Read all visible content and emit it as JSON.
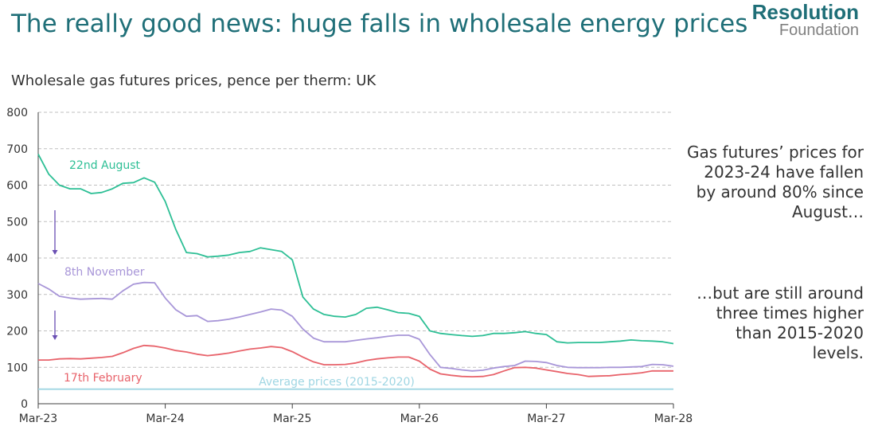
{
  "header": {
    "title": "The really good news: huge falls in wholesale energy prices",
    "logo_top": "Resolution",
    "logo_bottom": "Foundation"
  },
  "annotations": {
    "note_1": "Gas futures’ prices for 2023-24 have fallen by around 80% since August…",
    "note_2": "…but are still around three times higher than 2015-2020 levels."
  },
  "colors": {
    "aug": "#2dbf95",
    "nov": "#a896d8",
    "feb": "#e8636b",
    "avg": "#9fd6e3",
    "arrow": "#6a4fb3",
    "grid": "#bfbfbf",
    "axis": "#404040"
  },
  "chart_data": {
    "type": "line",
    "title": "Wholesale gas futures prices, pence per therm: UK",
    "xlabel": "",
    "ylabel": "",
    "ylim": [
      0,
      800
    ],
    "yticks": [
      0,
      100,
      200,
      300,
      400,
      500,
      600,
      700,
      800
    ],
    "xlim": [
      0,
      60
    ],
    "xticks": [
      {
        "value": 0,
        "label": "Mar-23"
      },
      {
        "value": 12,
        "label": "Mar-24"
      },
      {
        "value": 24,
        "label": "Mar-25"
      },
      {
        "value": 36,
        "label": "Mar-26"
      },
      {
        "value": 48,
        "label": "Mar-27"
      },
      {
        "value": 60,
        "label": "Mar-28"
      }
    ],
    "grid": "horizontal dashed",
    "series": [
      {
        "name": "22nd August",
        "color_key": "aug",
        "x": [
          0,
          1,
          2,
          3,
          4,
          5,
          6,
          7,
          8,
          9,
          10,
          11,
          12,
          13,
          14,
          15,
          16,
          17,
          18,
          19,
          20,
          21,
          22,
          23,
          24,
          25,
          26,
          27,
          28,
          29,
          30,
          31,
          32,
          33,
          34,
          35,
          36,
          37,
          38,
          39,
          40,
          41,
          42,
          43,
          44,
          45,
          46,
          47,
          48,
          49,
          50,
          51,
          52,
          53,
          54,
          55,
          56,
          57,
          58,
          59,
          60
        ],
        "values": [
          685,
          630,
          600,
          590,
          590,
          577,
          580,
          590,
          605,
          607,
          620,
          608,
          555,
          478,
          415,
          412,
          403,
          405,
          408,
          415,
          418,
          428,
          423,
          418,
          395,
          293,
          260,
          245,
          240,
          238,
          245,
          262,
          265,
          258,
          250,
          248,
          240,
          200,
          193,
          190,
          187,
          185,
          187,
          193,
          193,
          195,
          198,
          193,
          190,
          170,
          167,
          168,
          168,
          168,
          170,
          172,
          175,
          173,
          172,
          170,
          165
        ]
      },
      {
        "name": "8th November",
        "color_key": "nov",
        "x": [
          0,
          1,
          2,
          3,
          4,
          5,
          6,
          7,
          8,
          9,
          10,
          11,
          12,
          13,
          14,
          15,
          16,
          17,
          18,
          19,
          20,
          21,
          22,
          23,
          24,
          25,
          26,
          27,
          28,
          29,
          30,
          31,
          32,
          33,
          34,
          35,
          36,
          37,
          38,
          39,
          40,
          41,
          42,
          43,
          44,
          45,
          46,
          47,
          48,
          49,
          50,
          51,
          52,
          53,
          54,
          55,
          56,
          57,
          58,
          59,
          60
        ],
        "values": [
          330,
          315,
          295,
          290,
          287,
          288,
          289,
          287,
          310,
          328,
          333,
          332,
          290,
          258,
          240,
          242,
          226,
          228,
          232,
          238,
          245,
          252,
          260,
          257,
          240,
          205,
          180,
          170,
          170,
          170,
          174,
          178,
          181,
          185,
          188,
          188,
          177,
          135,
          100,
          97,
          93,
          90,
          92,
          98,
          102,
          105,
          117,
          116,
          113,
          105,
          100,
          99,
          99,
          99,
          100,
          100,
          101,
          102,
          108,
          107,
          103
        ]
      },
      {
        "name": "17th February",
        "color_key": "feb",
        "x": [
          0,
          1,
          2,
          3,
          4,
          5,
          6,
          7,
          8,
          9,
          10,
          11,
          12,
          13,
          14,
          15,
          16,
          17,
          18,
          19,
          20,
          21,
          22,
          23,
          24,
          25,
          26,
          27,
          28,
          29,
          30,
          31,
          32,
          33,
          34,
          35,
          36,
          37,
          38,
          39,
          40,
          41,
          42,
          43,
          44,
          45,
          46,
          47,
          48,
          49,
          50,
          51,
          52,
          53,
          54,
          55,
          56,
          57,
          58,
          59,
          60
        ],
        "values": [
          120,
          120,
          123,
          124,
          123,
          125,
          127,
          130,
          140,
          152,
          160,
          158,
          153,
          146,
          142,
          136,
          132,
          135,
          139,
          145,
          150,
          153,
          157,
          154,
          143,
          128,
          115,
          107,
          107,
          108,
          112,
          119,
          123,
          126,
          128,
          128,
          117,
          95,
          82,
          78,
          75,
          74,
          75,
          80,
          90,
          99,
          100,
          98,
          93,
          88,
          83,
          80,
          75,
          76,
          77,
          80,
          82,
          85,
          90,
          90,
          90
        ]
      },
      {
        "name": "Average prices (2015-2020)",
        "color_key": "avg",
        "x": [
          0,
          60
        ],
        "values": [
          40,
          40
        ]
      }
    ],
    "series_labels": [
      {
        "text": "22nd August",
        "color_key": "aug"
      },
      {
        "text": "8th November",
        "color_key": "nov"
      },
      {
        "text": "17th February",
        "color_key": "feb"
      },
      {
        "text": "Average prices (2015-2020)",
        "color_key": "avg"
      }
    ]
  }
}
